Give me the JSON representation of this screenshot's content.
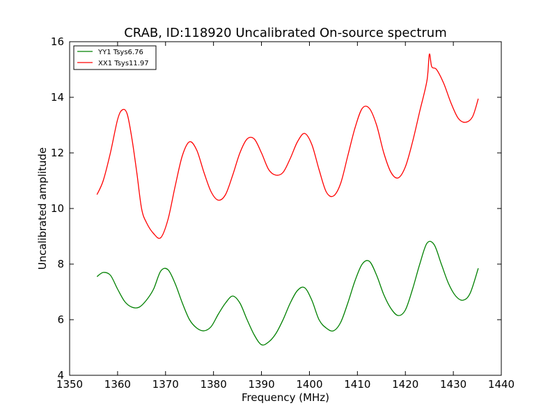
{
  "chart_data": {
    "type": "line",
    "title": "CRAB, ID:118920 Uncalibrated On-source spectrum",
    "xlabel": "Frequency (MHz)",
    "ylabel": "Uncalibrated amplitude",
    "xlim": [
      1350,
      1440
    ],
    "ylim": [
      4,
      16
    ],
    "xticks": [
      1350,
      1360,
      1370,
      1380,
      1390,
      1400,
      1410,
      1420,
      1430,
      1440
    ],
    "yticks": [
      4,
      6,
      8,
      10,
      12,
      14,
      16
    ],
    "grid": false,
    "legend_position": "top-left",
    "series": [
      {
        "name": "YY1 Tsys6.76",
        "color": "#008000",
        "x": [
          1355.7,
          1357.0,
          1358.5,
          1360.0,
          1361.5,
          1363.0,
          1364.5,
          1366.0,
          1367.5,
          1369.0,
          1370.5,
          1372.0,
          1373.5,
          1375.0,
          1376.5,
          1378.0,
          1379.5,
          1381.0,
          1382.5,
          1384.0,
          1385.5,
          1387.0,
          1388.5,
          1390.0,
          1391.5,
          1393.0,
          1394.5,
          1396.0,
          1397.5,
          1399.0,
          1400.5,
          1402.0,
          1403.5,
          1405.0,
          1406.5,
          1408.0,
          1409.5,
          1411.0,
          1412.5,
          1414.0,
          1415.5,
          1417.0,
          1418.5,
          1420.0,
          1421.5,
          1423.0,
          1424.5,
          1426.0,
          1427.5,
          1429.0,
          1430.5,
          1432.0,
          1433.5,
          1435.2
        ],
        "values": [
          7.55,
          7.7,
          7.6,
          7.1,
          6.65,
          6.45,
          6.45,
          6.7,
          7.1,
          7.75,
          7.8,
          7.3,
          6.6,
          6.0,
          5.7,
          5.6,
          5.75,
          6.2,
          6.6,
          6.85,
          6.6,
          6.0,
          5.45,
          5.1,
          5.2,
          5.5,
          6.0,
          6.6,
          7.05,
          7.15,
          6.7,
          6.0,
          5.7,
          5.6,
          5.9,
          6.6,
          7.4,
          8.0,
          8.1,
          7.6,
          6.9,
          6.4,
          6.15,
          6.35,
          7.1,
          8.0,
          8.75,
          8.7,
          8.0,
          7.3,
          6.85,
          6.7,
          6.95,
          7.85
        ]
      },
      {
        "name": "XX1 Tsys11.97",
        "color": "#ff0000",
        "x": [
          1355.7,
          1357.0,
          1358.5,
          1360.0,
          1361.0,
          1362.0,
          1363.0,
          1364.0,
          1365.0,
          1366.0,
          1367.5,
          1369.0,
          1370.5,
          1372.0,
          1373.5,
          1375.0,
          1376.5,
          1378.0,
          1379.5,
          1381.0,
          1382.5,
          1384.0,
          1385.5,
          1387.0,
          1388.5,
          1390.0,
          1391.5,
          1393.0,
          1394.5,
          1396.0,
          1397.5,
          1399.0,
          1400.5,
          1402.0,
          1403.5,
          1405.0,
          1406.5,
          1408.0,
          1409.5,
          1411.0,
          1412.5,
          1414.0,
          1415.5,
          1417.0,
          1418.5,
          1420.0,
          1421.5,
          1423.0,
          1424.5,
          1425.0,
          1425.5,
          1426.5,
          1428.0,
          1429.5,
          1431.0,
          1432.5,
          1434.0,
          1435.2
        ],
        "values": [
          10.5,
          11.0,
          12.0,
          13.2,
          13.55,
          13.4,
          12.5,
          11.3,
          10.0,
          9.5,
          9.1,
          8.95,
          9.6,
          10.8,
          11.9,
          12.4,
          12.1,
          11.3,
          10.6,
          10.3,
          10.5,
          11.2,
          12.0,
          12.5,
          12.5,
          12.0,
          11.4,
          11.2,
          11.3,
          11.8,
          12.4,
          12.7,
          12.3,
          11.4,
          10.6,
          10.45,
          10.9,
          11.9,
          12.9,
          13.6,
          13.6,
          13.0,
          12.0,
          11.3,
          11.1,
          11.5,
          12.4,
          13.5,
          14.6,
          15.55,
          15.1,
          15.0,
          14.5,
          13.8,
          13.25,
          13.1,
          13.3,
          13.95
        ]
      }
    ]
  }
}
